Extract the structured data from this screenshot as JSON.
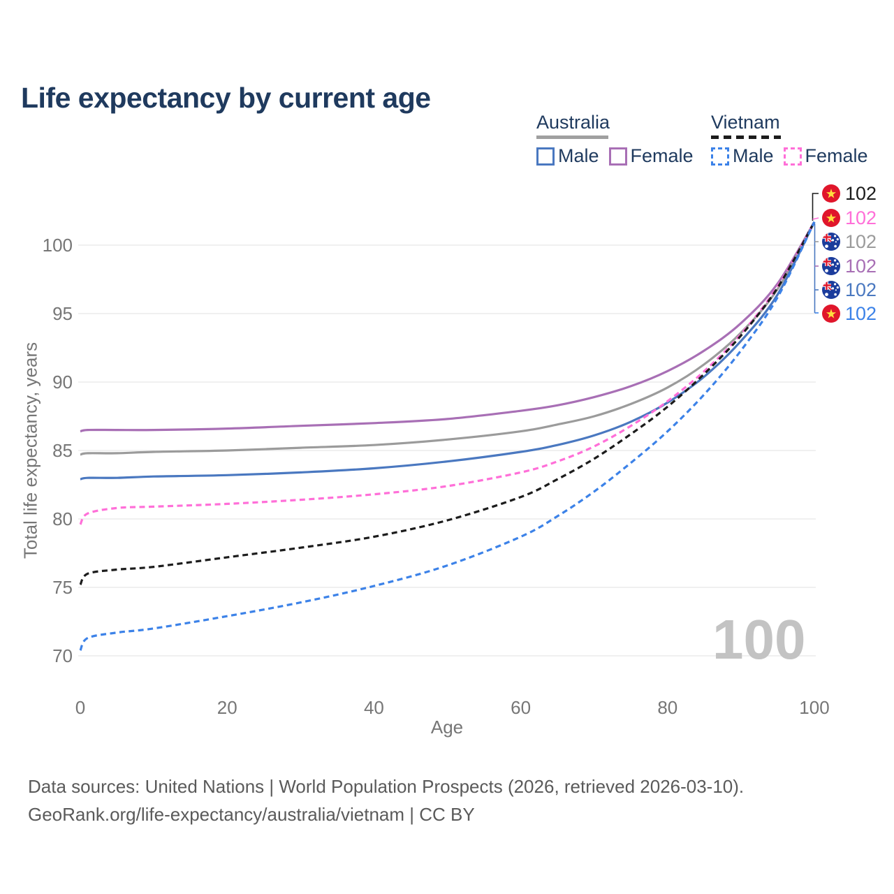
{
  "title": "Life expectancy by current age",
  "legend": {
    "groups": [
      {
        "country": "Australia",
        "line_style": "solid",
        "underline_color": "#a0a0a0",
        "items": [
          {
            "label": "Male",
            "color": "#4a78c0",
            "dashed": false
          },
          {
            "label": "Female",
            "color": "#a86fb5",
            "dashed": false
          }
        ]
      },
      {
        "country": "Vietnam",
        "line_style": "dashed",
        "underline_color": "#1c1c1c",
        "items": [
          {
            "label": "Male",
            "color": "#3c82e8",
            "dashed": true
          },
          {
            "label": "Female",
            "color": "#ff6fd8",
            "dashed": true
          }
        ]
      }
    ]
  },
  "chart_data": {
    "type": "line",
    "title": "Life expectancy by current age",
    "xlabel": "Age",
    "ylabel": "Total life expectancy, years",
    "x_ticks": [
      0,
      20,
      40,
      60,
      80,
      100
    ],
    "y_ticks": [
      70,
      75,
      80,
      85,
      90,
      95,
      100
    ],
    "xlim": [
      0,
      100
    ],
    "ylim": [
      69,
      103
    ],
    "grid": "horizontal-only",
    "legend_position": "top-right",
    "watermark": "100",
    "x": [
      0,
      1,
      5,
      10,
      20,
      30,
      40,
      50,
      60,
      65,
      70,
      75,
      80,
      85,
      90,
      95,
      100
    ],
    "series": [
      {
        "name": "Australia Female",
        "country": "Australia",
        "sex": "Female",
        "color": "#a86fb5",
        "dashed": false,
        "end_label": "102",
        "values": [
          86.4,
          86.5,
          86.5,
          86.5,
          86.6,
          86.8,
          87.0,
          87.3,
          87.9,
          88.3,
          88.9,
          89.7,
          90.8,
          92.3,
          94.3,
          97.2,
          101.7
        ]
      },
      {
        "name": "Australia Both sexes",
        "country": "Australia",
        "sex": "Both",
        "color": "#9b9b9b",
        "dashed": false,
        "end_label": "102",
        "values": [
          84.7,
          84.8,
          84.8,
          84.9,
          85.0,
          85.2,
          85.4,
          85.8,
          86.4,
          86.9,
          87.5,
          88.4,
          89.6,
          91.3,
          93.6,
          96.8,
          101.7
        ]
      },
      {
        "name": "Australia Male",
        "country": "Australia",
        "sex": "Male",
        "color": "#4a78c0",
        "dashed": false,
        "end_label": "102",
        "values": [
          82.9,
          83.0,
          83.0,
          83.1,
          83.2,
          83.4,
          83.7,
          84.2,
          84.9,
          85.4,
          86.1,
          87.1,
          88.5,
          90.4,
          93.0,
          96.4,
          101.7
        ]
      },
      {
        "name": "Vietnam Female",
        "country": "Vietnam",
        "sex": "Female",
        "color": "#ff6fd8",
        "dashed": true,
        "end_label": "102",
        "values": [
          79.6,
          80.4,
          80.8,
          80.9,
          81.1,
          81.4,
          81.8,
          82.4,
          83.4,
          84.2,
          85.3,
          86.8,
          88.6,
          90.8,
          93.5,
          97.0,
          101.7
        ]
      },
      {
        "name": "Vietnam Both sexes",
        "country": "Vietnam",
        "sex": "Both",
        "color": "#1c1c1c",
        "dashed": true,
        "end_label": "102",
        "values": [
          75.2,
          76.0,
          76.3,
          76.5,
          77.2,
          77.9,
          78.7,
          79.9,
          81.6,
          82.9,
          84.4,
          86.2,
          88.2,
          90.6,
          93.4,
          96.9,
          101.7
        ]
      },
      {
        "name": "Vietnam Male",
        "country": "Vietnam",
        "sex": "Male",
        "color": "#3c82e8",
        "dashed": true,
        "end_label": "102",
        "values": [
          70.4,
          71.3,
          71.7,
          72.0,
          72.9,
          73.9,
          75.1,
          76.6,
          78.7,
          80.2,
          82.0,
          84.1,
          86.4,
          89.1,
          92.3,
          96.2,
          101.7
        ]
      }
    ]
  },
  "end_labels": [
    {
      "value": "102",
      "flag": "vietnam",
      "series": "Vietnam Both sexes",
      "color": "#1c1c1c"
    },
    {
      "value": "102",
      "flag": "vietnam",
      "series": "Vietnam Female",
      "color": "#ff6fd8"
    },
    {
      "value": "102",
      "flag": "australia",
      "series": "Australia Both sexes",
      "color": "#9b9b9b"
    },
    {
      "value": "102",
      "flag": "australia",
      "series": "Australia Female",
      "color": "#a86fb5"
    },
    {
      "value": "102",
      "flag": "australia",
      "series": "Australia Male",
      "color": "#4a78c0"
    },
    {
      "value": "102",
      "flag": "vietnam",
      "series": "Vietnam Male",
      "color": "#3c82e8"
    }
  ],
  "flag_colors": {
    "vietnam": {
      "background": "#e0162b",
      "star": "#ffdf3e"
    },
    "australia": {
      "background": "#1b3c9c",
      "jack_red": "#e0162b",
      "white": "#ffffff"
    }
  },
  "style_colors": {
    "heading_text": "#1f3a5e",
    "axis_text": "#767676",
    "gridline": "#ececec",
    "watermark": "#c3c3c3",
    "footer_text": "#5a5a5a"
  },
  "footer": {
    "line1": "Data sources: United Nations | World Population Prospects (2026, retrieved 2026-03-10).",
    "line2": "GeoRank.org/life-expectancy/australia/vietnam | CC BY"
  }
}
